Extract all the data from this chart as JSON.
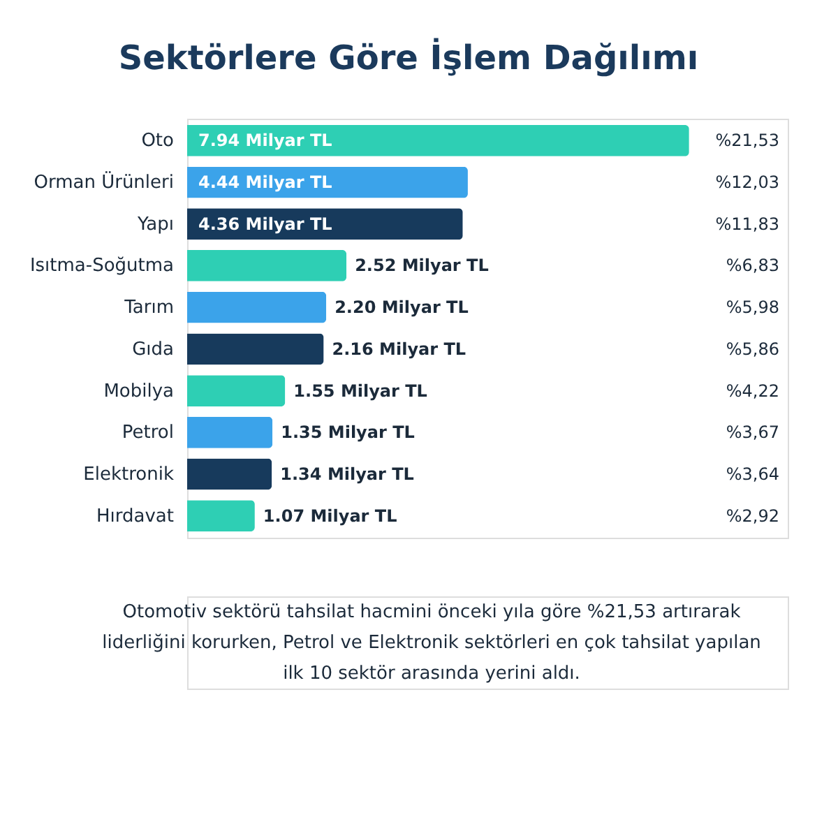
{
  "chart_data": {
    "type": "bar",
    "orientation": "horizontal",
    "title": "Sektörlere Göre İşlem Dağılımı",
    "categories": [
      "Oto",
      "Orman Ürünleri",
      "Yapı",
      "Isıtma-Soğutma",
      "Tarım",
      "Gıda",
      "Mobilya",
      "Petrol",
      "Elektronik",
      "Hırdavat"
    ],
    "values": [
      7.94,
      4.44,
      4.36,
      2.52,
      2.2,
      2.16,
      1.55,
      1.35,
      1.34,
      1.07
    ],
    "colors": [
      "#2ecfb4",
      "#3ba3ea",
      "#173a5c",
      "#2ecfb4",
      "#3ba3ea",
      "#173a5c",
      "#2ecfb4",
      "#3ba3ea",
      "#173a5c",
      "#2ecfb4"
    ],
    "value_labels": [
      "7.94 Milyar TL",
      "4.44 Milyar TL",
      "4.36 Milyar TL",
      "2.52 Milyar TL",
      "2.20 Milyar TL",
      "2.16 Milyar TL",
      "1.55 Milyar TL",
      "1.35 Milyar TL",
      "1.34 Milyar TL",
      "1.07 Milyar TL"
    ],
    "xlim": [
      0,
      9.5
    ],
    "tick_labels": "y",
    "grid": false,
    "legend": false,
    "annotations": [
      "%21,53",
      "%12,03",
      "%11,83",
      "%6,83",
      "%5,98",
      "%5,86",
      "%4,22",
      "%3,67",
      "%3,64",
      "%2,92",
      "Otomotiv sektörü tahsilat hacmini önceki yıla göre %21,53 artırarak",
      "liderliğini korurken, Petrol ve Elektronik sektörleri en çok tahsilat yapılan",
      "ilk 10 sektör arasında yerini aldı."
    ]
  }
}
